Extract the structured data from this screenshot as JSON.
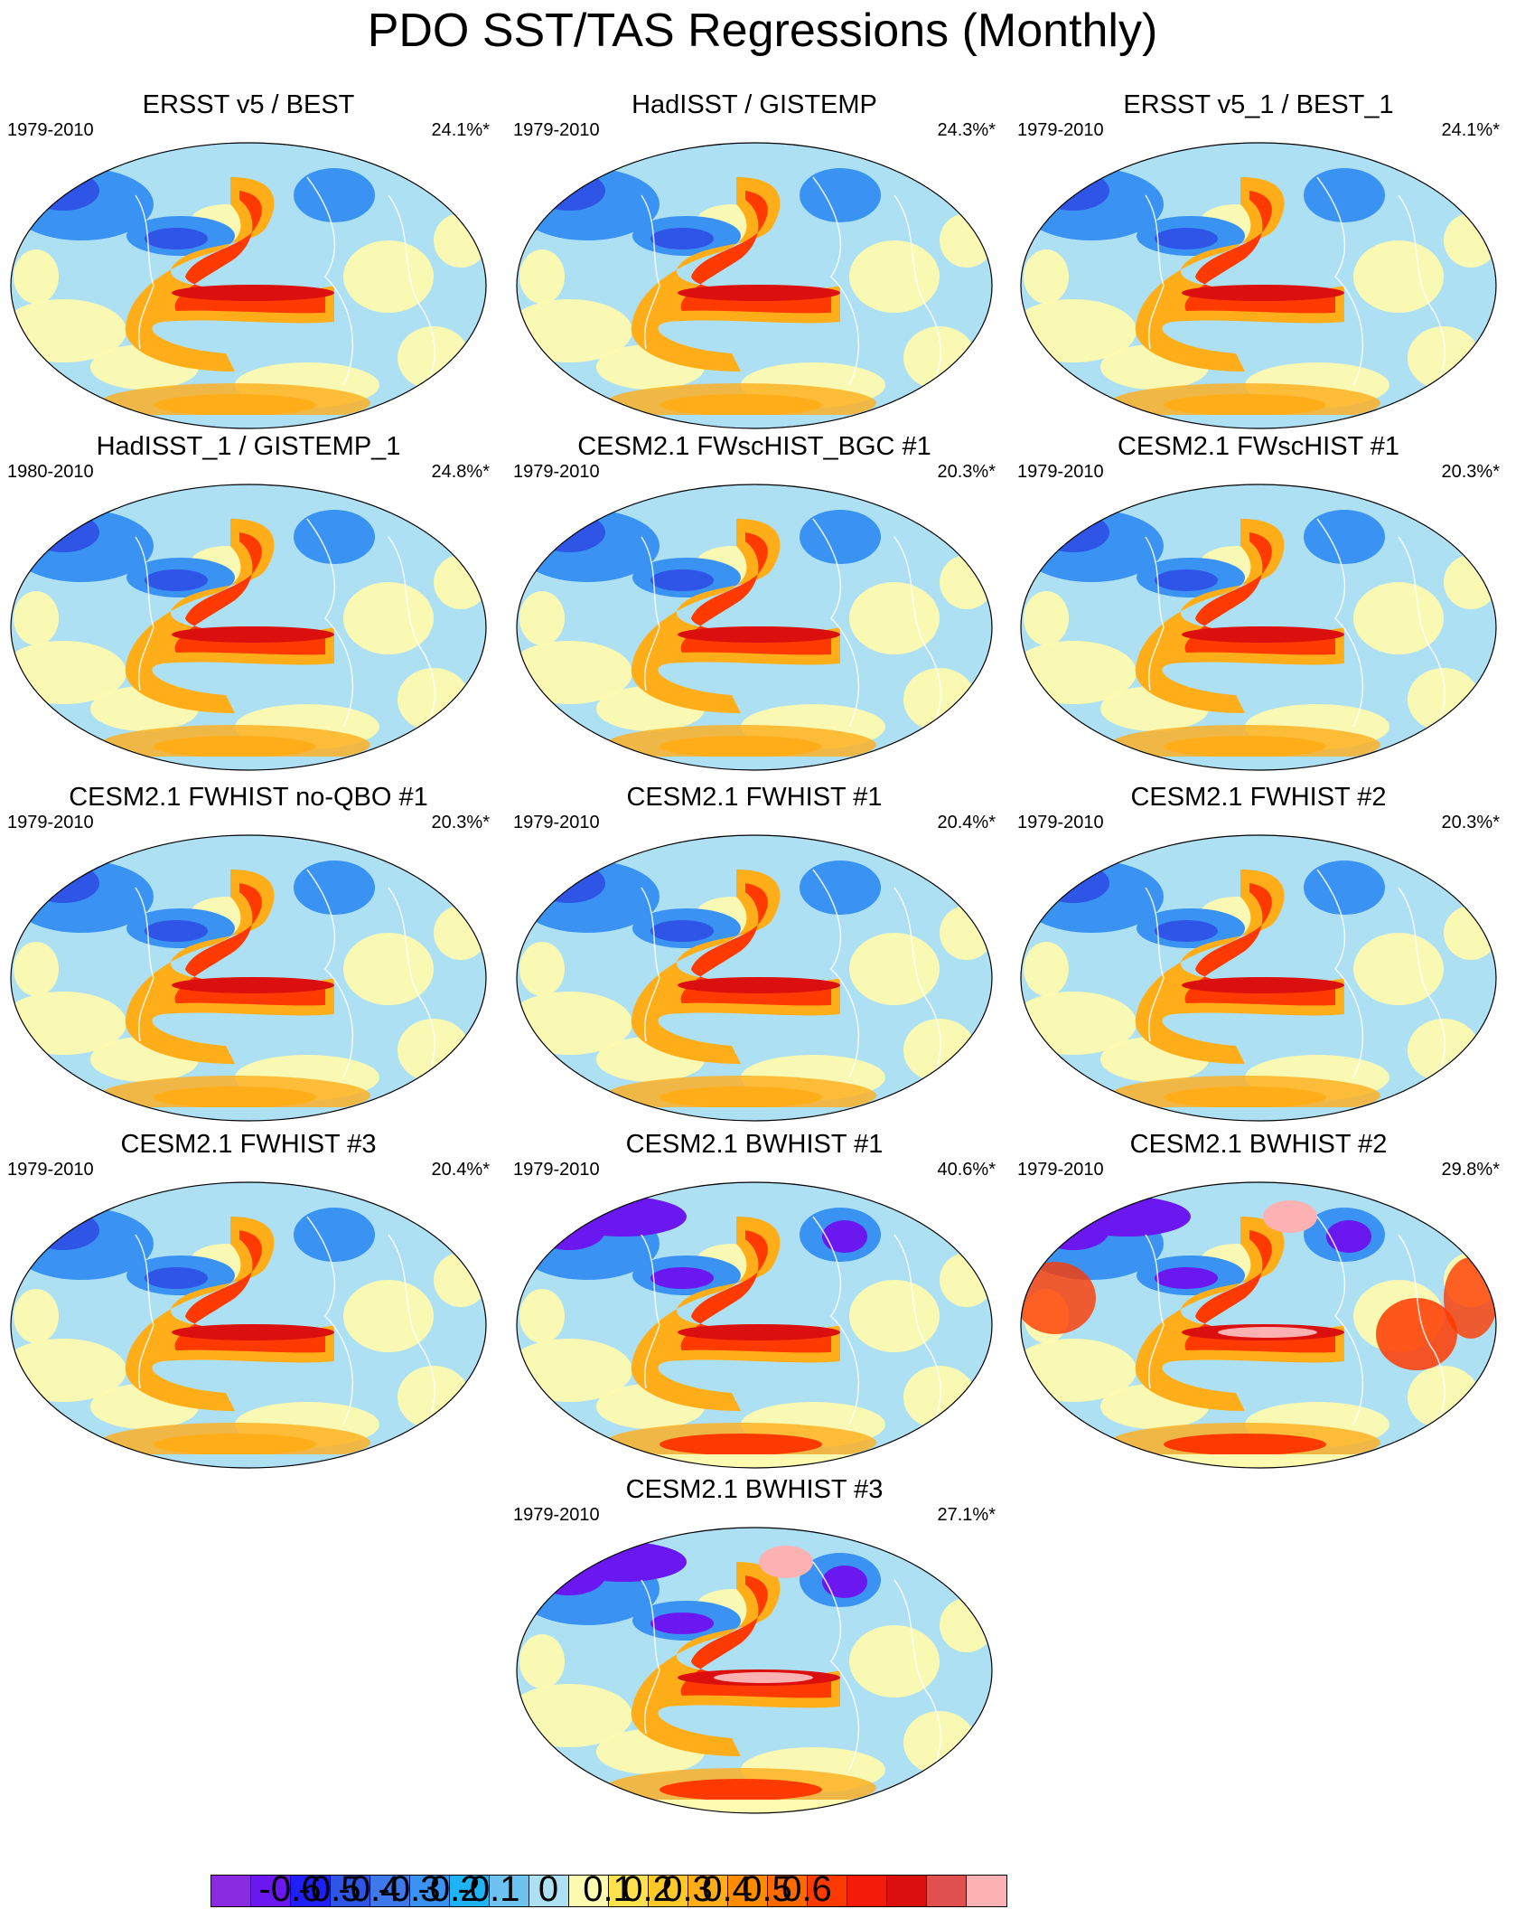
{
  "title": "PDO SST/TAS Regressions (Monthly)",
  "panels": [
    {
      "title": "ERSST v5 / BEST",
      "period": "1979-2010",
      "pct": "24.1%*",
      "variant": "obs"
    },
    {
      "title": "HadISST / GISTEMP",
      "period": "1979-2010",
      "pct": "24.3%*",
      "variant": "obs"
    },
    {
      "title": "ERSST v5_1 / BEST_1",
      "period": "1979-2010",
      "pct": "24.1%*",
      "variant": "obs"
    },
    {
      "title": "HadISST_1 / GISTEMP_1",
      "period": "1980-2010",
      "pct": "24.8%*",
      "variant": "obs"
    },
    {
      "title": "CESM2.1 FWscHIST_BGC #1",
      "period": "1979-2010",
      "pct": "20.3%*",
      "variant": "fw"
    },
    {
      "title": "CESM2.1 FWscHIST #1",
      "period": "1979-2010",
      "pct": "20.3%*",
      "variant": "fw"
    },
    {
      "title": "CESM2.1 FWHIST no-QBO #1",
      "period": "1979-2010",
      "pct": "20.3%*",
      "variant": "fw"
    },
    {
      "title": "CESM2.1 FWHIST #1",
      "period": "1979-2010",
      "pct": "20.4%*",
      "variant": "fw"
    },
    {
      "title": "CESM2.1 FWHIST #2",
      "period": "1979-2010",
      "pct": "20.3%*",
      "variant": "fw"
    },
    {
      "title": "CESM2.1 FWHIST #3",
      "period": "1979-2010",
      "pct": "20.4%*",
      "variant": "fw"
    },
    {
      "title": "CESM2.1 BWHIST #1",
      "period": "1979-2010",
      "pct": "40.6%*",
      "variant": "bw1"
    },
    {
      "title": "CESM2.1 BWHIST #2",
      "period": "1979-2010",
      "pct": "29.8%*",
      "variant": "bw2"
    },
    {
      "title": "CESM2.1 BWHIST #3",
      "period": "1979-2010",
      "pct": "27.1%*",
      "variant": "bw3"
    }
  ],
  "colorbar": {
    "colors": [
      "#8a2be2",
      "#6a17f0",
      "#1f1ffa",
      "#2f55e6",
      "#3f78ea",
      "#3a93f2",
      "#1eb3f5",
      "#6ec2ef",
      "#aee0f4",
      "#fefab0",
      "#ffe24d",
      "#ffca28",
      "#ffae1a",
      "#ff8c00",
      "#ff6a00",
      "#ff3a00",
      "#f41b0a",
      "#dc0f0f",
      "#e05050",
      "#fcb2b2"
    ],
    "ticks": [
      "-0.6",
      "-0.5",
      "-0.4",
      "-0.3",
      "-0.2",
      "-0.1",
      "0",
      "0.1",
      "0.2",
      "0.3",
      "0.4",
      "0.5",
      "0.6"
    ]
  },
  "palette": {
    "ocean_light_blue": "#aee0f4",
    "neg_mid": "#3a93f2",
    "neg_strong": "#2f55e6",
    "neg_extreme": "#6a17f0",
    "pos_light": "#fefab0",
    "pos_mid": "#ffae1a",
    "pos_strong": "#ff3a00",
    "pos_extreme": "#dc0f0f",
    "pos_max": "#fcb2b2"
  }
}
